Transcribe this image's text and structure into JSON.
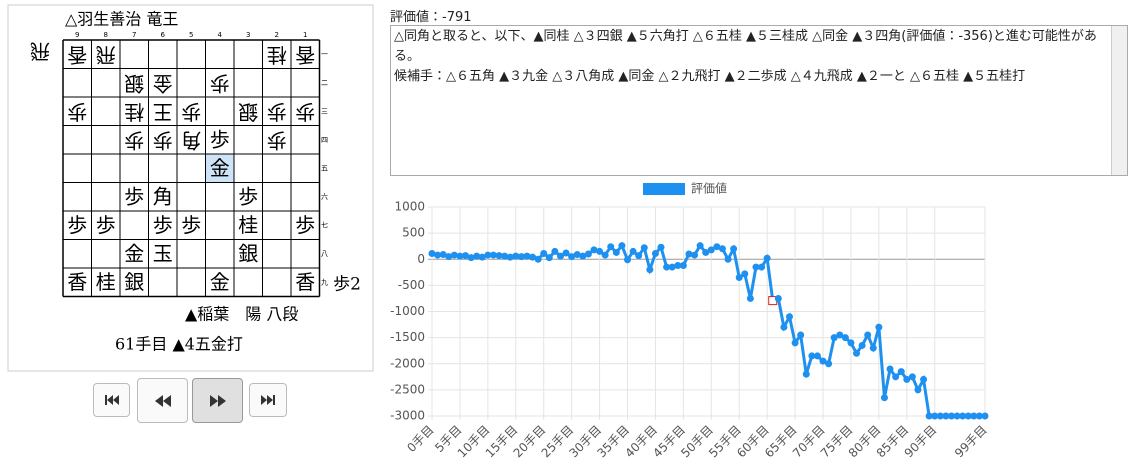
{
  "players": {
    "gote": "△羽生善治 竜王",
    "sente": "▲稲葉　陽 八段"
  },
  "move_caption": "61手目 ▲4五金打",
  "board": {
    "file_labels": [
      "9",
      "8",
      "7",
      "6",
      "5",
      "4",
      "3",
      "2",
      "1"
    ],
    "rank_labels": [
      "一",
      "二",
      "三",
      "四",
      "五",
      "六",
      "七",
      "八",
      "九"
    ],
    "gote_hand": "飛",
    "sente_hand": "歩2",
    "highlight_color": "#cfe3f7",
    "rows": [
      [
        {
          "p": "香",
          "side": "gote"
        },
        {
          "p": "飛",
          "side": "gote"
        },
        null,
        null,
        null,
        null,
        null,
        {
          "p": "桂",
          "side": "gote"
        },
        {
          "p": "香",
          "side": "gote"
        }
      ],
      [
        null,
        null,
        {
          "p": "銀",
          "side": "gote"
        },
        {
          "p": "金",
          "side": "gote"
        },
        null,
        {
          "p": "歩",
          "side": "gote"
        },
        null,
        null,
        null
      ],
      [
        {
          "p": "歩",
          "side": "gote"
        },
        null,
        {
          "p": "桂",
          "side": "gote"
        },
        {
          "p": "王",
          "side": "gote"
        },
        {
          "p": "歩",
          "side": "gote"
        },
        null,
        {
          "p": "銀",
          "side": "gote"
        },
        {
          "p": "歩",
          "side": "gote"
        },
        {
          "p": "歩",
          "side": "gote"
        }
      ],
      [
        null,
        null,
        {
          "p": "歩",
          "side": "gote"
        },
        {
          "p": "歩",
          "side": "gote"
        },
        {
          "p": "角",
          "side": "gote"
        },
        {
          "p": "歩",
          "side": "sente"
        },
        null,
        {
          "p": "歩",
          "side": "gote"
        },
        null
      ],
      [
        null,
        null,
        null,
        null,
        null,
        {
          "p": "金",
          "side": "sente",
          "highlight": true
        },
        null,
        null,
        null
      ],
      [
        null,
        null,
        {
          "p": "歩",
          "side": "sente"
        },
        {
          "p": "角",
          "side": "sente"
        },
        null,
        null,
        {
          "p": "歩",
          "side": "sente"
        },
        null,
        null
      ],
      [
        {
          "p": "歩",
          "side": "sente"
        },
        {
          "p": "歩",
          "side": "sente"
        },
        null,
        {
          "p": "歩",
          "side": "sente"
        },
        {
          "p": "歩",
          "side": "sente"
        },
        null,
        {
          "p": "桂",
          "side": "sente"
        },
        null,
        {
          "p": "歩",
          "side": "sente"
        }
      ],
      [
        null,
        null,
        {
          "p": "金",
          "side": "sente"
        },
        {
          "p": "玉",
          "side": "sente"
        },
        null,
        null,
        {
          "p": "銀",
          "side": "sente"
        },
        null,
        null
      ],
      [
        {
          "p": "香",
          "side": "sente"
        },
        {
          "p": "桂",
          "side": "sente"
        },
        {
          "p": "銀",
          "side": "sente"
        },
        null,
        null,
        {
          "p": "金",
          "side": "sente"
        },
        null,
        null,
        {
          "p": "香",
          "side": "sente"
        }
      ]
    ]
  },
  "evaluation": "評価値：-791",
  "comment": [
    "△同角と取ると、以下、▲同桂 △３四銀 ▲５六角打 △６五桂 ▲５三桂成 △同金 ▲３四角(評価値：-356)と進む可能性がある。",
    "候補手：△６五角 ▲３九金 △３八角成 ▲同金 △２九飛打 ▲２二歩成 △４九飛成 ▲２一と △６五桂 ▲５五桂打"
  ],
  "chart_data": {
    "type": "line",
    "categories": [
      "0手目",
      null,
      null,
      null,
      null,
      "5手目",
      null,
      null,
      null,
      null,
      "10手目",
      null,
      null,
      null,
      null,
      "15手目",
      null,
      null,
      null,
      null,
      "20手目",
      null,
      null,
      null,
      null,
      "25手目",
      null,
      null,
      null,
      null,
      "30手目",
      null,
      null,
      null,
      null,
      "35手目",
      null,
      null,
      null,
      null,
      "40手目",
      null,
      null,
      null,
      null,
      "45手目",
      null,
      null,
      null,
      null,
      "50手目",
      null,
      null,
      null,
      null,
      "55手目",
      null,
      null,
      null,
      null,
      "60手目",
      null,
      null,
      null,
      null,
      "65手目",
      null,
      null,
      null,
      null,
      "70手目",
      null,
      null,
      null,
      null,
      "75手目",
      null,
      null,
      null,
      null,
      "80手目",
      null,
      null,
      null,
      null,
      "85手目",
      null,
      null,
      null,
      null,
      "90手目",
      null,
      null,
      null,
      null,
      null,
      null,
      null,
      null,
      "99手目"
    ],
    "series": [
      {
        "name": "評価値",
        "color": "#1e90f0",
        "values": [
          110,
          80,
          90,
          50,
          80,
          60,
          70,
          30,
          60,
          40,
          80,
          80,
          70,
          60,
          40,
          60,
          50,
          60,
          40,
          0,
          110,
          30,
          150,
          60,
          120,
          50,
          90,
          60,
          100,
          180,
          150,
          80,
          240,
          130,
          260,
          -10,
          150,
          70,
          220,
          -200,
          110,
          230,
          -150,
          -150,
          -120,
          -120,
          100,
          80,
          260,
          130,
          180,
          240,
          200,
          0,
          200,
          -350,
          -280,
          -750,
          -150,
          -150,
          20,
          -791,
          -750,
          -1300,
          -1100,
          -1600,
          -1450,
          -2200,
          -1850,
          -1850,
          -1950,
          -2000,
          -1500,
          -1450,
          -1500,
          -1600,
          -1800,
          -1650,
          -1450,
          -1700,
          -1300,
          -2650,
          -2100,
          -2250,
          -2150,
          -2300,
          -2250,
          -2500,
          -2300,
          -3000,
          -3000,
          -3000,
          -3000,
          -3000,
          -3000,
          -3000,
          -3000,
          -3000,
          -3000,
          -3000
        ]
      }
    ],
    "highlight_index": 61,
    "highlight_color": "#e02020",
    "ylim": [
      -3000,
      1000
    ],
    "yticks": [
      1000,
      500,
      0,
      -500,
      -1000,
      -1500,
      -2000,
      -2500,
      -3000
    ],
    "grid": true,
    "legend": "top"
  }
}
